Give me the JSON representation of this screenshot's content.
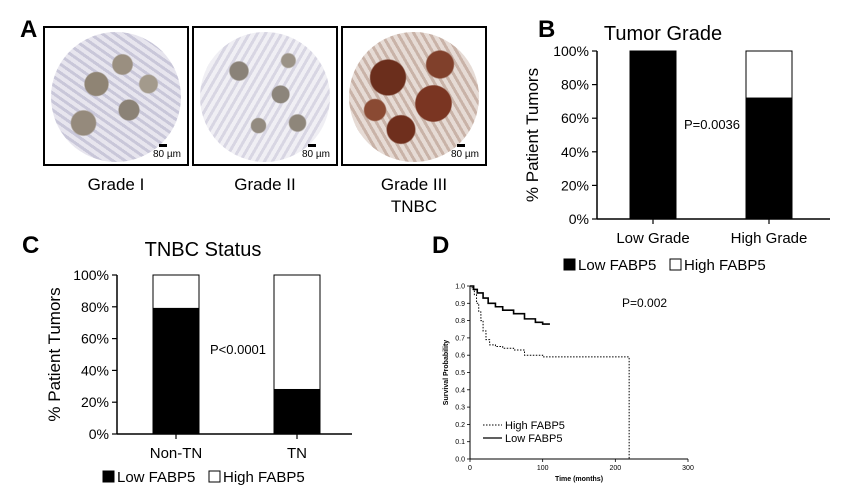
{
  "panels": {
    "A": {
      "letter": "A",
      "images": [
        {
          "scale": "80 µm",
          "label": "Grade I",
          "label2": ""
        },
        {
          "scale": "80 µm",
          "label": "Grade II",
          "label2": ""
        },
        {
          "scale": "80 µm",
          "label": "Grade III",
          "label2": "TNBC"
        }
      ]
    },
    "B": {
      "letter": "B"
    },
    "C": {
      "letter": "C"
    },
    "D": {
      "letter": "D"
    }
  },
  "chart_data": [
    {
      "id": "B",
      "type": "bar",
      "stacked": true,
      "title": "Tumor Grade",
      "ylabel": "% Patient Tumors",
      "xlabel": "",
      "categories": [
        "Low Grade",
        "High Grade"
      ],
      "series": [
        {
          "name": "Low FABP5",
          "color": "#000000",
          "values": [
            100,
            72
          ]
        },
        {
          "name": "High FABP5",
          "color": "#ffffff",
          "values": [
            0,
            28
          ]
        }
      ],
      "ylim": [
        0,
        100
      ],
      "yticks": [
        "0%",
        "20%",
        "40%",
        "60%",
        "80%",
        "100%"
      ],
      "annotation": "P=0.0036",
      "legend": [
        "Low FABP5",
        "High FABP5"
      ],
      "legend_position": "bottom"
    },
    {
      "id": "C",
      "type": "bar",
      "stacked": true,
      "title": "TNBC Status",
      "ylabel": "% Patient Tumors",
      "xlabel": "",
      "categories": [
        "Non-TN",
        "TN"
      ],
      "series": [
        {
          "name": "Low FABP5",
          "color": "#000000",
          "values": [
            79,
            28
          ]
        },
        {
          "name": "High FABP5",
          "color": "#ffffff",
          "values": [
            21,
            72
          ]
        }
      ],
      "ylim": [
        0,
        100
      ],
      "yticks": [
        "0%",
        "20%",
        "40%",
        "60%",
        "80%",
        "100%"
      ],
      "annotation": "P<0.0001",
      "legend": [
        "Low FABP5",
        "High FABP5"
      ],
      "legend_position": "bottom"
    },
    {
      "id": "D",
      "type": "line",
      "title": "",
      "xlabel": "Time (months)",
      "ylabel": "Survival Probability",
      "xlim": [
        0,
        300
      ],
      "ylim": [
        0,
        1.0
      ],
      "xticks": [
        "0",
        "100",
        "200",
        "300"
      ],
      "yticks": [
        "0.0",
        "0.1",
        "0.2",
        "0.3",
        "0.4",
        "0.5",
        "0.6",
        "0.7",
        "0.8",
        "0.9",
        "1.0"
      ],
      "annotation": "P=0.002",
      "legend_position": "bottom-left",
      "series": [
        {
          "name": "High FABP5",
          "style": "dotted",
          "points": [
            [
              0,
              1.0
            ],
            [
              3,
              0.98
            ],
            [
              6,
              0.95
            ],
            [
              9,
              0.9
            ],
            [
              12,
              0.85
            ],
            [
              15,
              0.8
            ],
            [
              18,
              0.74
            ],
            [
              22,
              0.69
            ],
            [
              27,
              0.66
            ],
            [
              35,
              0.65
            ],
            [
              45,
              0.64
            ],
            [
              60,
              0.63
            ],
            [
              75,
              0.6
            ],
            [
              100,
              0.59
            ],
            [
              150,
              0.59
            ],
            [
              219,
              0.59
            ],
            [
              219,
              0.0
            ]
          ]
        },
        {
          "name": "Low FABP5",
          "style": "solid",
          "points": [
            [
              0,
              1.0
            ],
            [
              5,
              0.98
            ],
            [
              10,
              0.96
            ],
            [
              18,
              0.93
            ],
            [
              25,
              0.9
            ],
            [
              35,
              0.88
            ],
            [
              45,
              0.86
            ],
            [
              60,
              0.84
            ],
            [
              75,
              0.81
            ],
            [
              90,
              0.79
            ],
            [
              100,
              0.78
            ],
            [
              110,
              0.78
            ]
          ]
        }
      ]
    }
  ]
}
